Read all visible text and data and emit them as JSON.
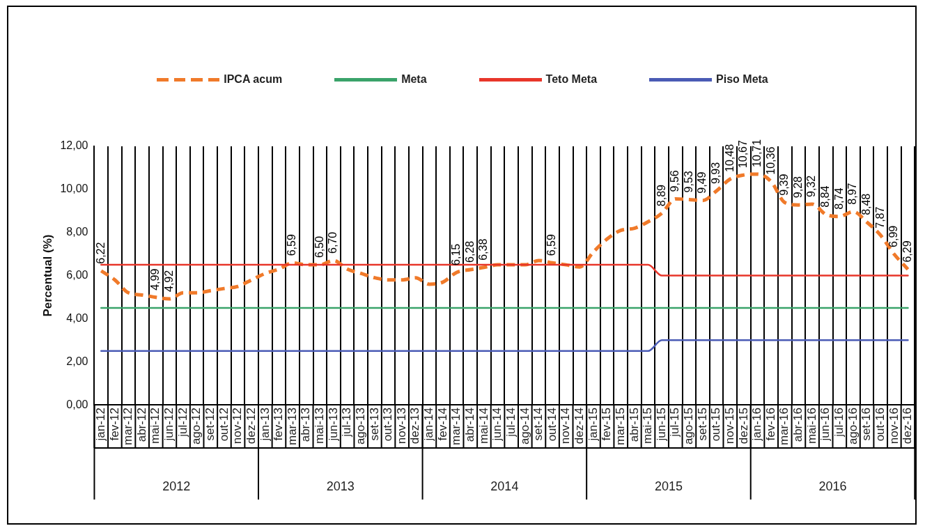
{
  "chart_data": {
    "type": "line",
    "categories": [
      "jan-12",
      "fev-12",
      "mar-12",
      "abr-12",
      "mai-12",
      "jun-12",
      "jul-12",
      "ago-12",
      "set-12",
      "out-12",
      "nov-12",
      "dez-12",
      "jan-13",
      "fev-13",
      "mar-13",
      "abr-13",
      "mai-13",
      "jun-13",
      "jul-13",
      "ago-13",
      "set-13",
      "out-13",
      "nov-13",
      "dez-13",
      "jan-14",
      "fev-14",
      "mar-14",
      "abr-14",
      "mai-14",
      "jun-14",
      "jul-14",
      "ago-14",
      "set-14",
      "out-14",
      "nov-14",
      "dez-14",
      "jan-15",
      "fev-15",
      "mar-15",
      "abr-15",
      "mai-15",
      "jun-15",
      "jul-15",
      "ago-15",
      "set-15",
      "out-15",
      "nov-15",
      "dez-15",
      "jan-16",
      "fev-16",
      "mar-16",
      "abr-16",
      "mai-16",
      "jun-16",
      "jul-16",
      "ago-16",
      "set-16",
      "out-16",
      "nov-16",
      "dez-16"
    ],
    "series": [
      {
        "name": "IPCA acum",
        "color": "#f07a2a",
        "line_style": "dashed",
        "values": [
          6.22,
          5.8,
          5.2,
          5.1,
          4.99,
          4.92,
          5.2,
          5.2,
          5.3,
          5.4,
          5.5,
          5.8,
          6.1,
          6.3,
          6.59,
          6.5,
          6.5,
          6.7,
          6.3,
          6.1,
          5.9,
          5.8,
          5.8,
          5.9,
          5.6,
          5.7,
          6.15,
          6.28,
          6.38,
          6.5,
          6.5,
          6.5,
          6.7,
          6.59,
          6.5,
          6.4,
          7.1,
          7.7,
          8.1,
          8.2,
          8.5,
          8.89,
          9.56,
          9.53,
          9.49,
          9.93,
          10.48,
          10.67,
          10.71,
          10.36,
          9.39,
          9.28,
          9.32,
          8.84,
          8.74,
          8.97,
          8.48,
          7.87,
          6.99,
          6.29
        ],
        "value_labels": [
          "6,22",
          null,
          null,
          null,
          "4,99",
          "4,92",
          null,
          null,
          null,
          null,
          null,
          null,
          null,
          null,
          "6,59",
          null,
          "6,50",
          "6,70",
          null,
          null,
          null,
          null,
          null,
          null,
          null,
          null,
          "6,15",
          "6,28",
          "6,38",
          null,
          null,
          null,
          null,
          "6,59",
          null,
          null,
          null,
          null,
          null,
          null,
          null,
          "8,89",
          "9,56",
          "9,53",
          "9,49",
          "9,93",
          "10,48",
          "10,67",
          "10,71",
          "10,36",
          "9,39",
          "9,28",
          "9,32",
          "8,84",
          "8,74",
          "8,97",
          "8,48",
          "7,87",
          "6,99",
          "6,29"
        ]
      },
      {
        "name": "Meta",
        "color": "#3aa36a",
        "line_style": "solid",
        "values": [
          4.5,
          4.5,
          4.5,
          4.5,
          4.5,
          4.5,
          4.5,
          4.5,
          4.5,
          4.5,
          4.5,
          4.5,
          4.5,
          4.5,
          4.5,
          4.5,
          4.5,
          4.5,
          4.5,
          4.5,
          4.5,
          4.5,
          4.5,
          4.5,
          4.5,
          4.5,
          4.5,
          4.5,
          4.5,
          4.5,
          4.5,
          4.5,
          4.5,
          4.5,
          4.5,
          4.5,
          4.5,
          4.5,
          4.5,
          4.5,
          4.5,
          4.5,
          4.5,
          4.5,
          4.5,
          4.5,
          4.5,
          4.5,
          4.5,
          4.5,
          4.5,
          4.5,
          4.5,
          4.5,
          4.5,
          4.5,
          4.5,
          4.5,
          4.5,
          4.5
        ]
      },
      {
        "name": "Teto Meta",
        "color": "#e8362a",
        "line_style": "solid",
        "values": [
          6.5,
          6.5,
          6.5,
          6.5,
          6.5,
          6.5,
          6.5,
          6.5,
          6.5,
          6.5,
          6.5,
          6.5,
          6.5,
          6.5,
          6.5,
          6.5,
          6.5,
          6.5,
          6.5,
          6.5,
          6.5,
          6.5,
          6.5,
          6.5,
          6.5,
          6.5,
          6.5,
          6.5,
          6.5,
          6.5,
          6.5,
          6.5,
          6.5,
          6.5,
          6.5,
          6.5,
          6.5,
          6.5,
          6.5,
          6.5,
          6.5,
          6.0,
          6.0,
          6.0,
          6.0,
          6.0,
          6.0,
          6.0,
          6.0,
          6.0,
          6.0,
          6.0,
          6.0,
          6.0,
          6.0,
          6.0,
          6.0,
          6.0,
          6.0,
          6.0
        ]
      },
      {
        "name": "Piso Meta",
        "color": "#4a5bb5",
        "line_style": "solid",
        "values": [
          2.5,
          2.5,
          2.5,
          2.5,
          2.5,
          2.5,
          2.5,
          2.5,
          2.5,
          2.5,
          2.5,
          2.5,
          2.5,
          2.5,
          2.5,
          2.5,
          2.5,
          2.5,
          2.5,
          2.5,
          2.5,
          2.5,
          2.5,
          2.5,
          2.5,
          2.5,
          2.5,
          2.5,
          2.5,
          2.5,
          2.5,
          2.5,
          2.5,
          2.5,
          2.5,
          2.5,
          2.5,
          2.5,
          2.5,
          2.5,
          2.5,
          3.0,
          3.0,
          3.0,
          3.0,
          3.0,
          3.0,
          3.0,
          3.0,
          3.0,
          3.0,
          3.0,
          3.0,
          3.0,
          3.0,
          3.0,
          3.0,
          3.0,
          3.0,
          3.0
        ]
      }
    ],
    "ylabel": "Percentual (%)",
    "ylim": [
      0,
      12
    ],
    "yticks": [
      {
        "value": 0,
        "label": "0,00"
      },
      {
        "value": 2,
        "label": "2,00"
      },
      {
        "value": 4,
        "label": "4,00"
      },
      {
        "value": 6,
        "label": "6,00"
      },
      {
        "value": 8,
        "label": "8,00"
      },
      {
        "value": 10,
        "label": "10,00"
      },
      {
        "value": 12,
        "label": "12,00"
      }
    ],
    "annotations": [
      "2012",
      "2013",
      "2014",
      "2015",
      "2016"
    ],
    "grid": "x",
    "legend": "top",
    "marker": "none"
  }
}
